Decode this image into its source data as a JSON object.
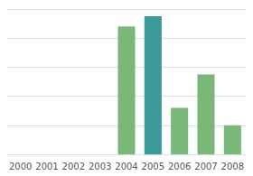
{
  "chart_data": {
    "type": "bar",
    "categories": [
      "2000",
      "2001",
      "2002",
      "2003",
      "2004",
      "2005",
      "2006",
      "2007",
      "2008"
    ],
    "values": [
      0,
      0,
      0,
      0,
      88,
      95,
      32,
      55,
      20
    ],
    "colors": [
      "#7ab87a",
      "#7ab87a",
      "#7ab87a",
      "#7ab87a",
      "#7ab87a",
      "#3a9a9a",
      "#7ab87a",
      "#7ab87a",
      "#7ab87a"
    ],
    "ylim": [
      0,
      100
    ],
    "yticks": [
      0,
      20,
      40,
      60,
      80,
      100
    ],
    "grid": true,
    "tick_labels": "x"
  }
}
